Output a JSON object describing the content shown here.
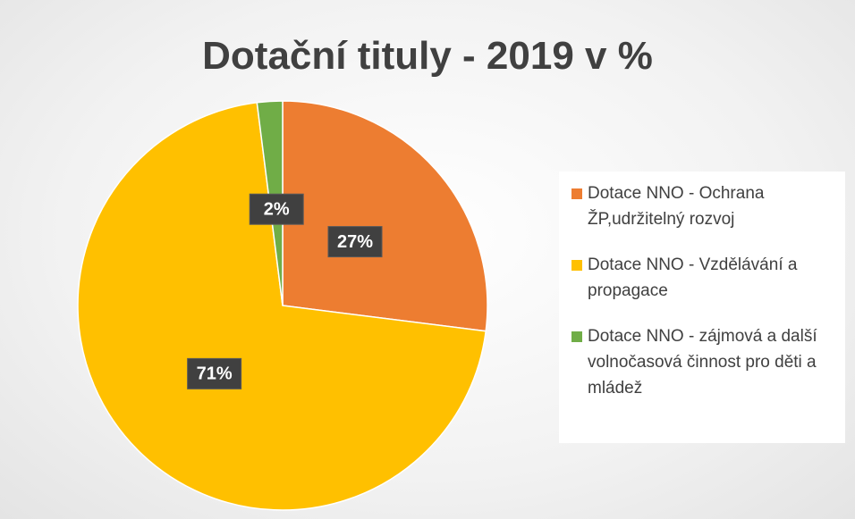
{
  "chart_data": {
    "type": "pie",
    "title": "Dotační tituly - 2019 v %",
    "categories": [
      "Dotace NNO - Ochrana ŽP,udržitelný rozvoj",
      "Dotace NNO - Vzdělávání a propagace",
      "Dotace NNO - zájmová a další volnočasová činnost pro děti a mládež"
    ],
    "values": [
      27,
      71,
      2
    ],
    "value_labels": [
      "27%",
      "71%",
      "2%"
    ],
    "colors": [
      "#ed7d31",
      "#ffc000",
      "#70ad47"
    ],
    "legend": "right"
  }
}
